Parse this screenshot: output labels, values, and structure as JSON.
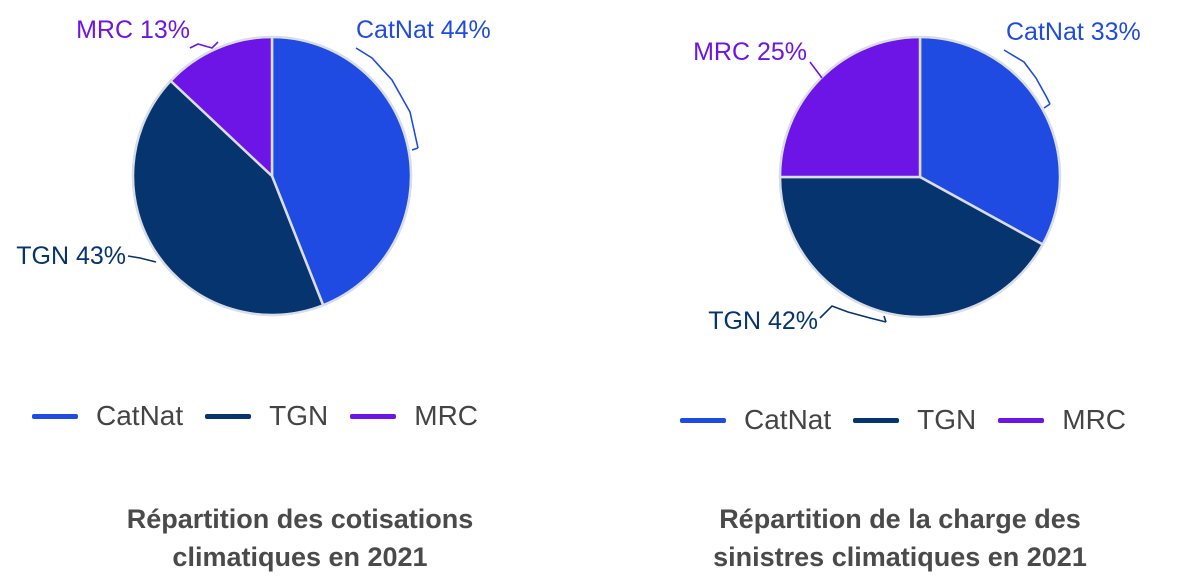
{
  "colors": {
    "catnat": "#1f4be3",
    "tgn": "#06346e",
    "mrc": "#6d14e6",
    "slice_stroke": "#d9dde6"
  },
  "chart_data": [
    {
      "type": "pie",
      "title_lines": [
        "Répartition des cotisations",
        "climatiques en 2021"
      ],
      "slices": [
        {
          "name": "CatNat",
          "value": 44,
          "label": "CatNat 44%",
          "color": "#1f4be3"
        },
        {
          "name": "TGN",
          "value": 43,
          "label": "TGN 43%",
          "color": "#06346e"
        },
        {
          "name": "MRC",
          "value": 13,
          "label": "MRC 13%",
          "color": "#6d14e6"
        }
      ],
      "legend": [
        {
          "name": "CatNat",
          "color": "#1f4be3"
        },
        {
          "name": "TGN",
          "color": "#06346e"
        },
        {
          "name": "MRC",
          "color": "#6d14e6"
        }
      ],
      "legend_position": "bottom"
    },
    {
      "type": "pie",
      "title_lines": [
        "Répartition de la charge des",
        "sinistres climatiques en 2021"
      ],
      "slices": [
        {
          "name": "CatNat",
          "value": 33,
          "label": "CatNat 33%",
          "color": "#1f4be3"
        },
        {
          "name": "TGN",
          "value": 42,
          "label": "TGN 42%",
          "color": "#06346e"
        },
        {
          "name": "MRC",
          "value": 25,
          "label": "MRC 25%",
          "color": "#6d14e6"
        }
      ],
      "legend": [
        {
          "name": "CatNat",
          "color": "#1f4be3"
        },
        {
          "name": "TGN",
          "color": "#06346e"
        },
        {
          "name": "MRC",
          "color": "#6d14e6"
        }
      ],
      "legend_position": "bottom"
    }
  ]
}
